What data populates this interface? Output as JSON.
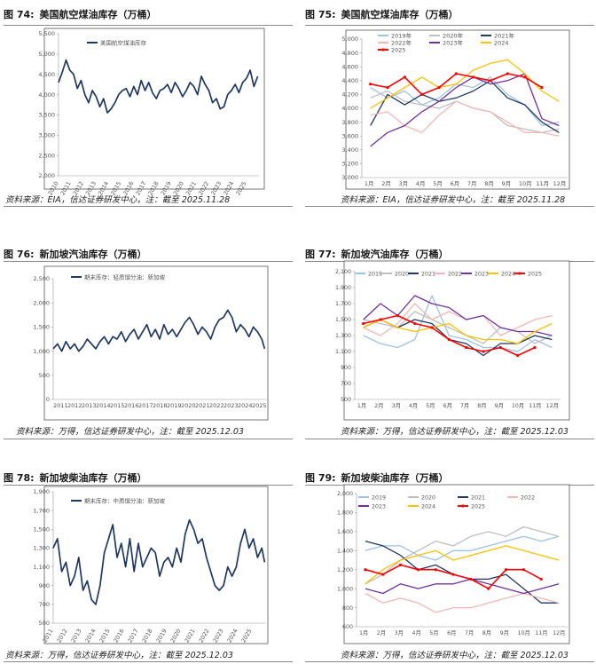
{
  "charts": [
    {
      "fig": "图 74:",
      "title": "美国航空煤油库存（万桶）",
      "source": "资料来源：EIA，信达证券研发中心，注：截至 2025.11.28",
      "chart_data": {
        "type": "line",
        "ylim": [
          2000,
          5500
        ],
        "yticks": [
          "5,500",
          "5,000",
          "4,500",
          "4,000",
          "3,500",
          "3,000",
          "2,500",
          "2,000"
        ],
        "xticks": [
          "2010",
          "2011",
          "2012",
          "2013",
          "2014",
          "2015",
          "2016",
          "2017",
          "2018",
          "2019",
          "2020",
          "2021",
          "2022",
          "2023",
          "2024",
          "2025"
        ],
        "xrange": [
          2010,
          2026
        ],
        "series": [
          {
            "name": "美国航空煤油库存",
            "color": "#1f3864",
            "x": [
              2010.0,
              2010.3,
              2010.6,
              2010.9,
              2011.2,
              2011.5,
              2011.8,
              2012.1,
              2012.4,
              2012.7,
              2013.0,
              2013.3,
              2013.6,
              2013.9,
              2014.2,
              2014.5,
              2014.8,
              2015.1,
              2015.4,
              2015.7,
              2016.0,
              2016.3,
              2016.6,
              2016.9,
              2017.2,
              2017.5,
              2017.8,
              2018.1,
              2018.4,
              2018.7,
              2019.0,
              2019.3,
              2019.6,
              2019.9,
              2020.2,
              2020.5,
              2020.8,
              2021.1,
              2021.4,
              2021.7,
              2022.0,
              2022.3,
              2022.6,
              2022.9,
              2023.2,
              2023.5,
              2023.8,
              2024.1,
              2024.4,
              2024.7,
              2025.0,
              2025.3,
              2025.6,
              2025.9
            ],
            "values": [
              4300,
              4550,
              4850,
              4600,
              4500,
              4150,
              4350,
              4000,
              3800,
              4100,
              3950,
              3700,
              3900,
              3550,
              3650,
              3800,
              4000,
              4100,
              4150,
              3950,
              4200,
              4000,
              4350,
              4100,
              4300,
              4050,
              3900,
              4100,
              4150,
              4250,
              4050,
              4300,
              4150,
              3950,
              4100,
              4300,
              4200,
              4000,
              4450,
              4250,
              4100,
              3800,
              3900,
              3650,
              3700,
              4000,
              4100,
              4250,
              4050,
              4300,
              4400,
              4600,
              4200,
              4450
            ]
          }
        ]
      }
    },
    {
      "fig": "图 75:",
      "title": "美国航空煤油库存（万桶）",
      "source": "资料来源：EIA，信达证券研发中心，注：截至 2025.11.28",
      "chart_data": {
        "type": "line",
        "ylim": [
          3000,
          5000
        ],
        "yticks": [
          "5,000",
          "4,800",
          "4,600",
          "4,400",
          "4,200",
          "4,000",
          "3,800",
          "3,600",
          "3,400",
          "3,200",
          "3,000"
        ],
        "xticks": [
          "1月",
          "2月",
          "3月",
          "4月",
          "5月",
          "6月",
          "7月",
          "8月",
          "9月",
          "10月",
          "11月",
          "12月"
        ],
        "series": [
          {
            "name": "2019年",
            "color": "#9dc3e6",
            "values": [
              4300,
              4150,
              4250,
              4050,
              4150,
              4350,
              4300,
              4450,
              4200,
              4050,
              3750,
              3800
            ]
          },
          {
            "name": "2020年",
            "color": "#bfbfbf",
            "values": [
              4150,
              4250,
              4100,
              4050,
              4000,
              4100,
              4000,
              3950,
              3750,
              3700,
              3650,
              3700
            ]
          },
          {
            "name": "2021年",
            "color": "#1f3864",
            "values": [
              3750,
              4200,
              4050,
              4200,
              4100,
              4150,
              4250,
              4400,
              4150,
              4050,
              3800,
              3650
            ]
          },
          {
            "name": "2022年",
            "color": "#f4b6b6",
            "values": [
              3900,
              3950,
              3750,
              3650,
              3900,
              4100,
              4000,
              3950,
              3800,
              3650,
              3650,
              3600
            ]
          },
          {
            "name": "2023年",
            "color": "#7030a0",
            "values": [
              3450,
              3650,
              3750,
              3950,
              4100,
              4300,
              4450,
              4350,
              4400,
              4500,
              3850,
              3750
            ]
          },
          {
            "name": "2024",
            "color": "#ffc000",
            "values": [
              4000,
              4150,
              4300,
              4450,
              4300,
              4350,
              4550,
              4650,
              4700,
              4500,
              4250,
              4100
            ]
          },
          {
            "name": "2025",
            "color": "#ff0000",
            "marker": true,
            "values": [
              4350,
              4300,
              4450,
              4200,
              4300,
              4500,
              4450,
              4400,
              4500,
              4450,
              4300,
              null
            ]
          }
        ]
      }
    },
    {
      "fig": "图 76:",
      "title": "新加坡汽油库存（万桶）",
      "source": "资料来源：万得，信达证券研发中心，注：截至 2025.12.03",
      "chart_data": {
        "type": "line",
        "ylim": [
          0,
          2500
        ],
        "yticks": [
          "2,500",
          "2,000",
          "1,500",
          "1,000",
          "500",
          "0"
        ],
        "xticks": [
          "2011",
          "2012",
          "2013",
          "2014",
          "2015",
          "2016",
          "2017",
          "2018",
          "2019",
          "2020",
          "2021",
          "2022",
          "2023",
          "2024",
          "2025"
        ],
        "xrange": [
          2011,
          2026
        ],
        "series": [
          {
            "name": "期末库存：轻质馏分油：新加坡",
            "color": "#1f3864",
            "x": [
              2011.0,
              2011.3,
              2011.6,
              2011.9,
              2012.2,
              2012.5,
              2012.8,
              2013.1,
              2013.4,
              2013.7,
              2014.0,
              2014.3,
              2014.6,
              2014.9,
              2015.2,
              2015.5,
              2015.8,
              2016.1,
              2016.4,
              2016.7,
              2017.0,
              2017.3,
              2017.6,
              2017.9,
              2018.2,
              2018.5,
              2018.8,
              2019.1,
              2019.4,
              2019.7,
              2020.0,
              2020.3,
              2020.6,
              2020.9,
              2021.2,
              2021.5,
              2021.8,
              2022.1,
              2022.4,
              2022.7,
              2023.0,
              2023.3,
              2023.6,
              2023.9,
              2024.2,
              2024.5,
              2024.8,
              2025.1,
              2025.4,
              2025.7,
              2025.9
            ],
            "values": [
              1050,
              1150,
              1000,
              1200,
              1050,
              1150,
              1000,
              1100,
              1250,
              1150,
              1050,
              1200,
              1300,
              1150,
              1300,
              1250,
              1400,
              1200,
              1350,
              1450,
              1250,
              1400,
              1550,
              1300,
              1450,
              1250,
              1550,
              1350,
              1450,
              1300,
              1450,
              1600,
              1700,
              1550,
              1350,
              1500,
              1400,
              1250,
              1500,
              1650,
              1700,
              1850,
              1700,
              1400,
              1550,
              1450,
              1300,
              1500,
              1400,
              1250,
              1050
            ]
          }
        ]
      }
    },
    {
      "fig": "图 77:",
      "title": "新加坡汽油库存（万桶）",
      "source": "资料来源：万得，信达证券研发中心，注：截至 2025.12.03",
      "chart_data": {
        "type": "line",
        "ylim": [
          500,
          2100
        ],
        "yticks": [
          "2,100",
          "1,900",
          "1,700",
          "1,500",
          "1,300",
          "1,100",
          "900",
          "700",
          "500"
        ],
        "xticks": [
          "1月",
          "2月",
          "3月",
          "4月",
          "5月",
          "6月",
          "7月",
          "8月",
          "9月",
          "10月",
          "11月",
          "12月"
        ],
        "series": [
          {
            "name": "2019",
            "color": "#9dc3e6",
            "values": [
              1300,
              1200,
              1150,
              1250,
              1800,
              1300,
              1250,
              1150,
              1150,
              1100,
              1250,
              1150
            ]
          },
          {
            "name": "2020",
            "color": "#bfbfbf",
            "values": [
              1500,
              1450,
              1400,
              1600,
              1500,
              1400,
              1300,
              1200,
              1400,
              1350,
              1200,
              1300
            ]
          },
          {
            "name": "2021",
            "color": "#1f3864",
            "values": [
              1400,
              1500,
              1400,
              1500,
              1450,
              1250,
              1200,
              1050,
              1200,
              1200,
              1300,
              1250
            ]
          },
          {
            "name": "2022",
            "color": "#f4b6b6",
            "values": [
              1400,
              1300,
              1450,
              1700,
              1500,
              1600,
              1500,
              1550,
              1300,
              1400,
              1500,
              1550
            ]
          },
          {
            "name": "2023",
            "color": "#7030a0",
            "values": [
              1500,
              1700,
              1550,
              1800,
              1700,
              1650,
              1500,
              1550,
              1400,
              1350,
              1350,
              1300
            ]
          },
          {
            "name": "2024",
            "color": "#ffc000",
            "values": [
              1400,
              1500,
              1400,
              1350,
              1400,
              1450,
              1300,
              1250,
              1250,
              1200,
              1350,
              1450
            ]
          },
          {
            "name": "2025",
            "color": "#ff0000",
            "marker": true,
            "values": [
              1450,
              1500,
              1550,
              1450,
              1400,
              1250,
              1150,
              1100,
              1150,
              1050,
              1150,
              null
            ]
          }
        ]
      }
    },
    {
      "fig": "图 78:",
      "title": "新加坡柴油库存（万桶）",
      "source": "资料来源：万得，信达证券研发中心，注：截至 2025.12.03",
      "chart_data": {
        "type": "line",
        "ylim": [
          500,
          1900
        ],
        "yticks": [
          "1,900",
          "1,700",
          "1,500",
          "1,300",
          "1,100",
          "900",
          "700",
          "500"
        ],
        "xticks": [
          "2011",
          "2012",
          "2013",
          "2014",
          "2015",
          "2016",
          "2017",
          "2018",
          "2019",
          "2020",
          "2021",
          "2022",
          "2023",
          "2024",
          "2025"
        ],
        "xrange": [
          2011,
          2026
        ],
        "series": [
          {
            "name": "期末库存：中质馏分油：新加坡",
            "color": "#1f3864",
            "x": [
              2011.0,
              2011.3,
              2011.6,
              2011.9,
              2012.2,
              2012.5,
              2012.8,
              2013.1,
              2013.4,
              2013.7,
              2014.0,
              2014.3,
              2014.6,
              2014.9,
              2015.2,
              2015.5,
              2015.8,
              2016.1,
              2016.4,
              2016.7,
              2017.0,
              2017.3,
              2017.6,
              2017.9,
              2018.2,
              2018.5,
              2018.8,
              2019.1,
              2019.4,
              2019.7,
              2020.0,
              2020.3,
              2020.6,
              2020.9,
              2021.2,
              2021.5,
              2021.8,
              2022.1,
              2022.4,
              2022.7,
              2023.0,
              2023.3,
              2023.6,
              2023.9,
              2024.2,
              2024.5,
              2024.8,
              2025.1,
              2025.4,
              2025.7,
              2025.9
            ],
            "values": [
              1300,
              1400,
              1050,
              1150,
              900,
              1000,
              1200,
              850,
              950,
              750,
              700,
              900,
              1250,
              1400,
              1550,
              1200,
              1350,
              1100,
              1400,
              1050,
              1350,
              1100,
              1200,
              1300,
              1250,
              1000,
              1150,
              1200,
              1100,
              1300,
              1150,
              1450,
              1600,
              1500,
              1350,
              1400,
              1200,
              1050,
              900,
              850,
              900,
              1100,
              1000,
              1100,
              1350,
              1500,
              1300,
              1400,
              1200,
              1300,
              1150
            ]
          }
        ]
      }
    },
    {
      "fig": "图 79:",
      "title": "新加坡柴油库存（万桶）",
      "source": "资料来源：万得，信达证券研发中心，注：截至 2025.12.03",
      "chart_data": {
        "type": "line",
        "ylim": [
          600,
          2000
        ],
        "yticks": [
          "2,000",
          "1,800",
          "1,600",
          "1,400",
          "1,200",
          "1,000",
          "800",
          "600"
        ],
        "xticks": [
          "1月",
          "2月",
          "3月",
          "4月",
          "5月",
          "6月",
          "7月",
          "8月",
          "9月",
          "10月",
          "11月",
          "12月"
        ],
        "series": [
          {
            "name": "2019",
            "color": "#9dc3e6",
            "values": [
              1400,
              1450,
              1450,
              1350,
              1300,
              1400,
              1400,
              1450,
              1500,
              1550,
              1500,
              1550
            ]
          },
          {
            "name": "2020",
            "color": "#bfbfbf",
            "values": [
              1050,
              1150,
              1300,
              1400,
              1500,
              1450,
              1550,
              1600,
              1550,
              1650,
              1600,
              1550
            ]
          },
          {
            "name": "2021",
            "color": "#1f3864",
            "values": [
              1500,
              1450,
              1350,
              1200,
              1250,
              1150,
              1100,
              1100,
              1150,
              1000,
              850,
              850
            ]
          },
          {
            "name": "2022",
            "color": "#f4b6b6",
            "values": [
              950,
              850,
              900,
              850,
              750,
              800,
              800,
              850,
              900,
              950,
              900,
              850
            ]
          },
          {
            "name": "2023",
            "color": "#7030a0",
            "values": [
              1000,
              950,
              1050,
              1000,
              1050,
              1050,
              1100,
              1050,
              1000,
              950,
              1000,
              1050
            ]
          },
          {
            "name": "2024",
            "color": "#ffc000",
            "values": [
              1050,
              1200,
              1300,
              1350,
              1400,
              1300,
              1350,
              1400,
              1450,
              1400,
              1350,
              1300
            ]
          },
          {
            "name": "2025",
            "color": "#ff0000",
            "marker": true,
            "values": [
              1200,
              1150,
              1250,
              1200,
              1200,
              1150,
              1100,
              1000,
              1200,
              1200,
              1100,
              null
            ]
          }
        ]
      }
    }
  ]
}
